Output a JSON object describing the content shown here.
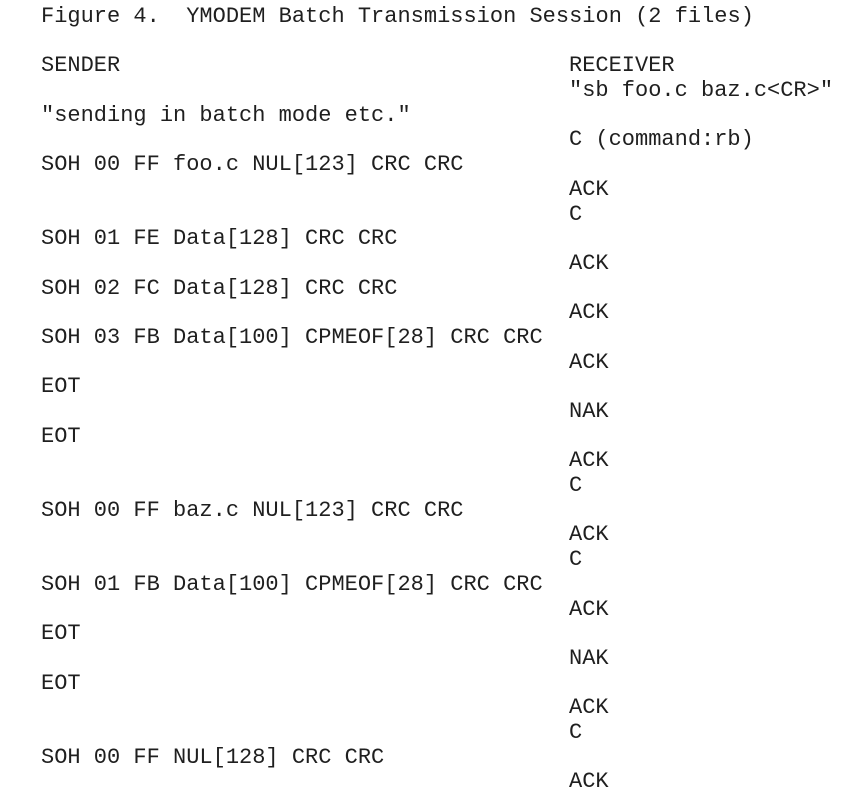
{
  "figure": {
    "caption": "Figure 4.  YMODEM Batch Transmission Session (2 files)"
  },
  "session": {
    "sender_header": "SENDER",
    "receiver_header": "RECEIVER",
    "rows": [
      {
        "sender": "",
        "receiver": "\"sb foo.c baz.c<CR>\""
      },
      {
        "sender": "\"sending in batch mode etc.\"",
        "receiver": ""
      },
      {
        "sender": "",
        "receiver": "C (command:rb)"
      },
      {
        "sender": "SOH 00 FF foo.c NUL[123] CRC CRC",
        "receiver": ""
      },
      {
        "sender": "",
        "receiver": "ACK"
      },
      {
        "sender": "",
        "receiver": "C"
      },
      {
        "sender": "SOH 01 FE Data[128] CRC CRC",
        "receiver": ""
      },
      {
        "sender": "",
        "receiver": "ACK"
      },
      {
        "sender": "SOH 02 FC Data[128] CRC CRC",
        "receiver": ""
      },
      {
        "sender": "",
        "receiver": "ACK"
      },
      {
        "sender": "SOH 03 FB Data[100] CPMEOF[28] CRC CRC",
        "receiver": ""
      },
      {
        "sender": "",
        "receiver": "ACK"
      },
      {
        "sender": "EOT",
        "receiver": ""
      },
      {
        "sender": "",
        "receiver": "NAK"
      },
      {
        "sender": "EOT",
        "receiver": ""
      },
      {
        "sender": "",
        "receiver": "ACK"
      },
      {
        "sender": "",
        "receiver": "C"
      },
      {
        "sender": "SOH 00 FF baz.c NUL[123] CRC CRC",
        "receiver": ""
      },
      {
        "sender": "",
        "receiver": "ACK"
      },
      {
        "sender": "",
        "receiver": "C"
      },
      {
        "sender": "SOH 01 FB Data[100] CPMEOF[28] CRC CRC",
        "receiver": ""
      },
      {
        "sender": "",
        "receiver": "ACK"
      },
      {
        "sender": "EOT",
        "receiver": ""
      },
      {
        "sender": "",
        "receiver": "NAK"
      },
      {
        "sender": "EOT",
        "receiver": ""
      },
      {
        "sender": "",
        "receiver": "ACK"
      },
      {
        "sender": "",
        "receiver": "C"
      },
      {
        "sender": "SOH 00 FF NUL[128] CRC CRC",
        "receiver": ""
      },
      {
        "sender": "",
        "receiver": "ACK"
      }
    ]
  },
  "colors": {
    "background": "#ffffff",
    "text": "#1f1f1f"
  }
}
